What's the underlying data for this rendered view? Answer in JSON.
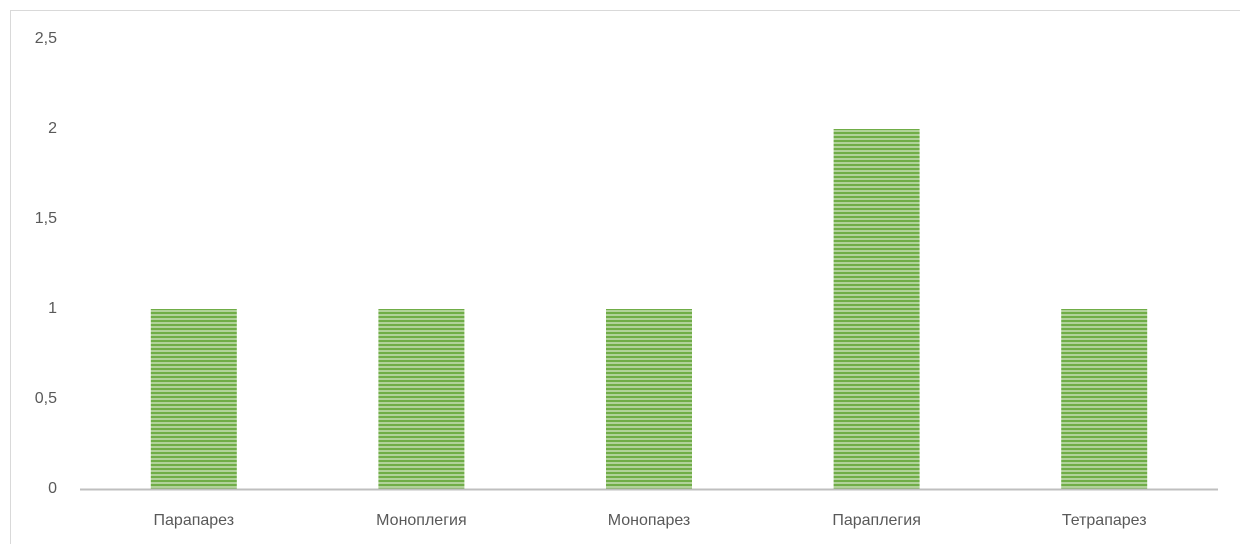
{
  "chart_data": {
    "type": "bar",
    "categories": [
      "Парапарез",
      "Моноплегия",
      "Монопарез",
      "Параплегия",
      "Тетрапарез"
    ],
    "values": [
      1,
      1,
      1,
      2,
      1
    ],
    "color": "#70ad47",
    "ylim": [
      0,
      2.5
    ],
    "yticks": [
      0,
      {
        "value": 0.5,
        "label": "0,5"
      },
      1,
      {
        "value": 1.5,
        "label": "1,5"
      },
      2,
      {
        "value": 2.5,
        "label": "2,5"
      }
    ],
    "grid": false
  }
}
